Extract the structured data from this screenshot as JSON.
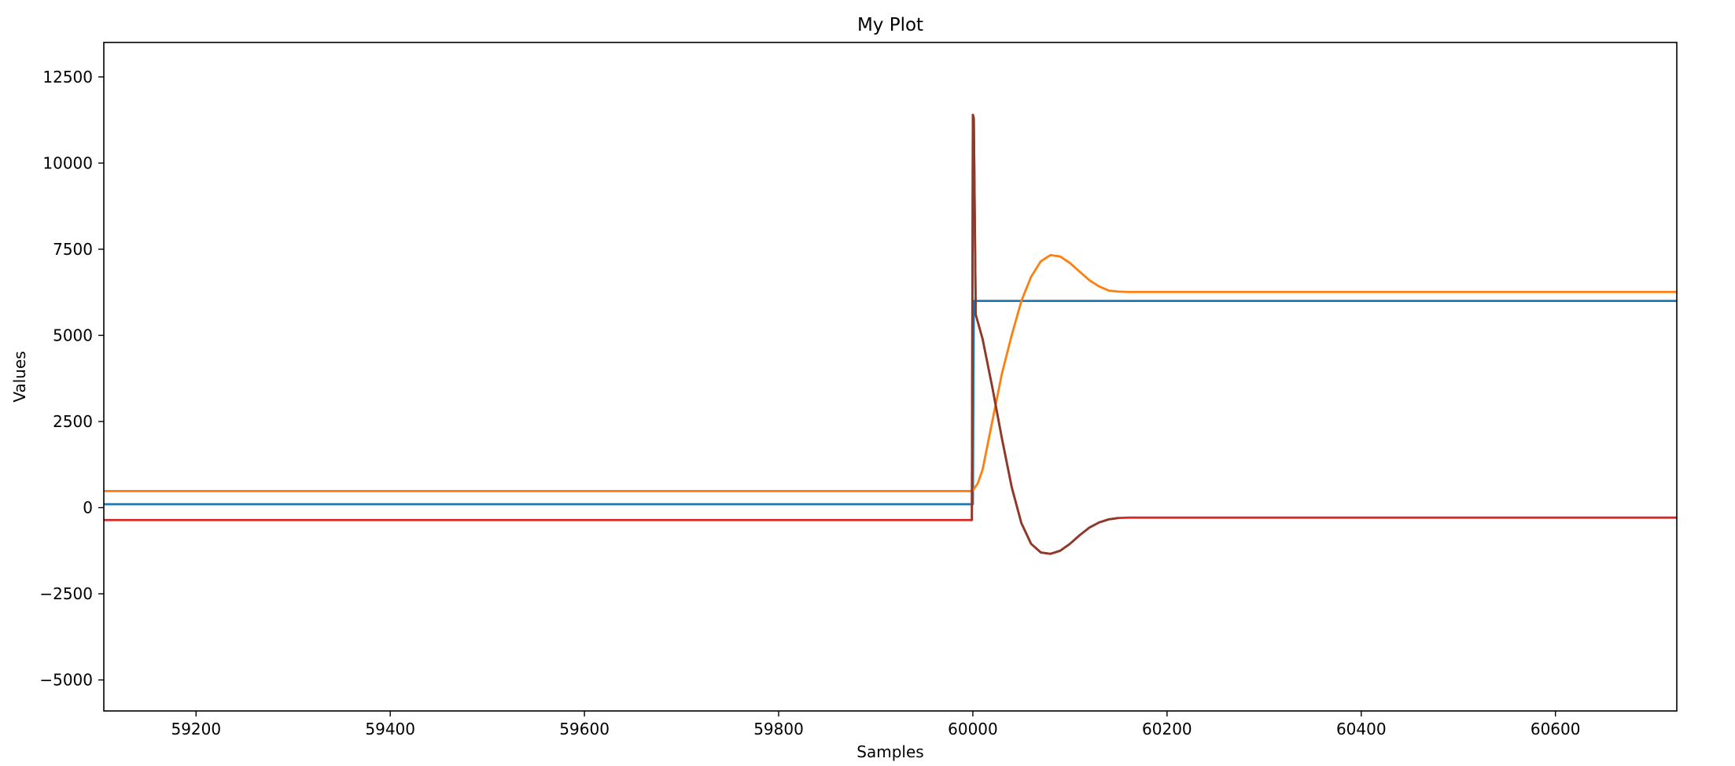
{
  "chart_data": {
    "type": "line",
    "title": "My Plot",
    "xlabel": "Samples",
    "ylabel": "Values",
    "xlim": [
      59105,
      60725
    ],
    "ylim": [
      -5900,
      13500
    ],
    "x_ticks": [
      59200,
      59400,
      59600,
      59800,
      60000,
      60200,
      60400,
      60600
    ],
    "x_tick_labels": [
      "59200",
      "59400",
      "59600",
      "59800",
      "60000",
      "60200",
      "60400",
      "60600"
    ],
    "y_ticks": [
      -5000,
      -2500,
      0,
      2500,
      5000,
      7500,
      10000,
      12500
    ],
    "y_tick_labels": [
      "−5000",
      "−2500",
      "0",
      "2500",
      "5000",
      "7500",
      "10000",
      "12500"
    ],
    "grid": false,
    "legend": "none",
    "series": [
      {
        "color": "#1f77b4",
        "points": [
          [
            59105,
            100
          ],
          [
            59999,
            100
          ],
          [
            60000,
            100
          ],
          [
            60001,
            6000
          ],
          [
            60725,
            6000
          ]
        ]
      },
      {
        "color": "#ff7f0e",
        "points": [
          [
            59105,
            480
          ],
          [
            59998,
            480
          ],
          [
            60000,
            500
          ],
          [
            60005,
            700
          ],
          [
            60010,
            1100
          ],
          [
            60020,
            2500
          ],
          [
            60030,
            3900
          ],
          [
            60040,
            5000
          ],
          [
            60050,
            6000
          ],
          [
            60060,
            6700
          ],
          [
            60070,
            7150
          ],
          [
            60080,
            7330
          ],
          [
            60090,
            7290
          ],
          [
            60100,
            7100
          ],
          [
            60110,
            6850
          ],
          [
            60120,
            6600
          ],
          [
            60130,
            6420
          ],
          [
            60140,
            6300
          ],
          [
            60150,
            6270
          ],
          [
            60160,
            6260
          ],
          [
            60725,
            6260
          ]
        ]
      },
      {
        "color": "#d62728",
        "points": [
          [
            59105,
            -360
          ],
          [
            59999,
            -360
          ],
          [
            60000,
            11400
          ],
          [
            60001,
            11300
          ],
          [
            60003,
            5600
          ],
          [
            60005,
            5400
          ],
          [
            60010,
            4900
          ],
          [
            60020,
            3500
          ],
          [
            60030,
            2000
          ],
          [
            60040,
            600
          ],
          [
            60050,
            -450
          ],
          [
            60060,
            -1050
          ],
          [
            60070,
            -1300
          ],
          [
            60080,
            -1340
          ],
          [
            60090,
            -1250
          ],
          [
            60100,
            -1050
          ],
          [
            60110,
            -800
          ],
          [
            60120,
            -580
          ],
          [
            60130,
            -430
          ],
          [
            60140,
            -340
          ],
          [
            60150,
            -300
          ],
          [
            60160,
            -290
          ],
          [
            60725,
            -290
          ]
        ]
      },
      {
        "color": "#8c3a2a",
        "points": [
          [
            59999,
            -360
          ],
          [
            60000,
            11400
          ],
          [
            60001,
            11300
          ],
          [
            60003,
            5600
          ],
          [
            60005,
            5400
          ],
          [
            60010,
            4900
          ],
          [
            60020,
            3500
          ],
          [
            60030,
            2000
          ],
          [
            60040,
            600
          ],
          [
            60050,
            -450
          ],
          [
            60060,
            -1050
          ],
          [
            60070,
            -1300
          ],
          [
            60080,
            -1340
          ],
          [
            60090,
            -1250
          ],
          [
            60100,
            -1050
          ],
          [
            60110,
            -800
          ],
          [
            60120,
            -580
          ],
          [
            60130,
            -430
          ],
          [
            60140,
            -340
          ],
          [
            60150,
            -300
          ]
        ]
      }
    ]
  }
}
